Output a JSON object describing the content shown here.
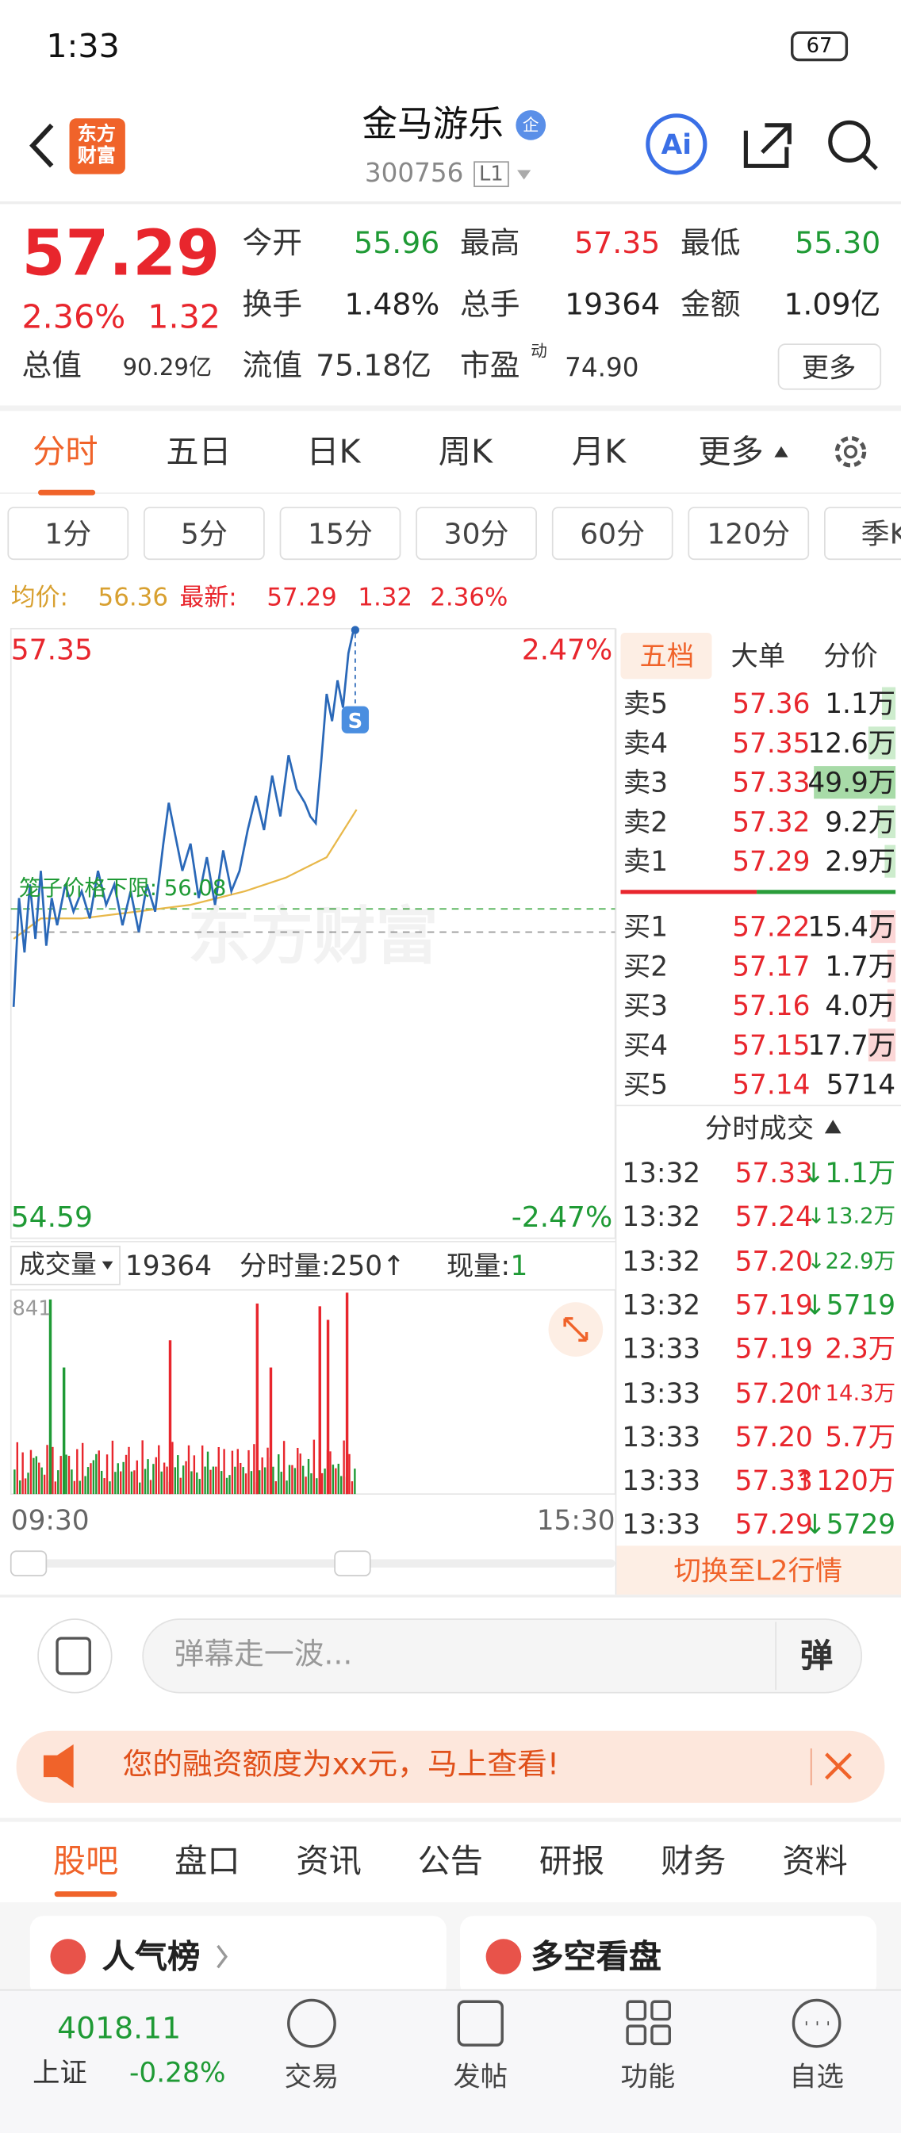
{
  "status": {
    "time": "1:33",
    "battery": "67"
  },
  "header": {
    "logo": "东方财富",
    "title": "金马游乐",
    "badge": "企",
    "code": "300756",
    "level": "L1",
    "ai": "Ai"
  },
  "quote": {
    "price": "57.29",
    "pct": "2.36%",
    "change": "1.32",
    "fields": [
      {
        "label": "今开",
        "value": "55.96"
      },
      {
        "label": "最高",
        "value": "57.35"
      },
      {
        "label": "最低",
        "value": "55.30"
      },
      {
        "label": "换手",
        "value": "1.48%"
      },
      {
        "label": "总手",
        "value": "19364"
      },
      {
        "label": "金额",
        "value": "1.09亿"
      }
    ],
    "total_label": "总值",
    "total": "90.29亿",
    "float_label": "流值",
    "float": "75.18亿",
    "pe_label": "市盈",
    "pe_mark": "动",
    "pe": "74.90",
    "more": "更多"
  },
  "tabs": [
    "分时",
    "五日",
    "日K",
    "周K",
    "月K",
    "更多"
  ],
  "periods": [
    "1分",
    "5分",
    "15分",
    "30分",
    "60分",
    "120分",
    "季K"
  ],
  "info": {
    "avg_label": "均价:",
    "avg": "56.36",
    "last_label": "最新:",
    "last": "57.29",
    "change": "1.32",
    "pct": "2.36%"
  },
  "chart": {
    "high": "57.35",
    "high_pct": "2.47%",
    "low": "54.59",
    "low_pct": "-2.47%",
    "cage": "笼子价格下限: 56.08",
    "watermark": "东方财富",
    "start": "09:30",
    "end": "15:30",
    "vol_max": "841",
    "vol_label": "成交量",
    "vol_total": "19364",
    "tick_vol": "分时量:250↑",
    "cur_label": "现量:",
    "cur": "1"
  },
  "book": {
    "tabs": [
      "五档",
      "大单",
      "分价"
    ],
    "asks": [
      [
        "卖5",
        "57.36",
        "1.1万"
      ],
      [
        "卖4",
        "57.35",
        "12.6万"
      ],
      [
        "卖3",
        "57.33",
        "49.9万"
      ],
      [
        "卖2",
        "57.32",
        "9.2万"
      ],
      [
        "卖1",
        "57.29",
        "2.9万"
      ]
    ],
    "bids": [
      [
        "买1",
        "57.22",
        "15.4万"
      ],
      [
        "买2",
        "57.17",
        "1.7万"
      ],
      [
        "买3",
        "57.16",
        "4.0万"
      ],
      [
        "买4",
        "57.15",
        "17.7万"
      ],
      [
        "买5",
        "57.14",
        "5714"
      ]
    ],
    "trades_title": "分时成交",
    "trades": [
      [
        "13:32",
        "57.33",
        "↓1.1万"
      ],
      [
        "13:32",
        "57.24",
        "↓13.2万"
      ],
      [
        "13:32",
        "57.20",
        "↓22.9万"
      ],
      [
        "13:32",
        "57.19",
        "↓5719"
      ],
      [
        "13:33",
        "57.19",
        "2.3万"
      ],
      [
        "13:33",
        "57.20",
        "↑14.3万"
      ],
      [
        "13:33",
        "57.20",
        "5.7万"
      ],
      [
        "13:33",
        "57.33",
        "↑120万"
      ],
      [
        "13:33",
        "57.29",
        "↓5729"
      ]
    ],
    "switch": "切换至L2行情"
  },
  "comment": {
    "placeholder": "弹幕走一波...",
    "button": "弹"
  },
  "banner": "您的融资额度为xx元，马上查看!",
  "sections": [
    "股吧",
    "盘口",
    "资讯",
    "公告",
    "研报",
    "财务",
    "资料"
  ],
  "cards": [
    "人气榜",
    "多空看盘"
  ],
  "nav": {
    "index": "4018.11",
    "index_name": "上证",
    "index_pct": "-0.28%",
    "items": [
      "交易",
      "发帖",
      "功能",
      "自选"
    ]
  }
}
